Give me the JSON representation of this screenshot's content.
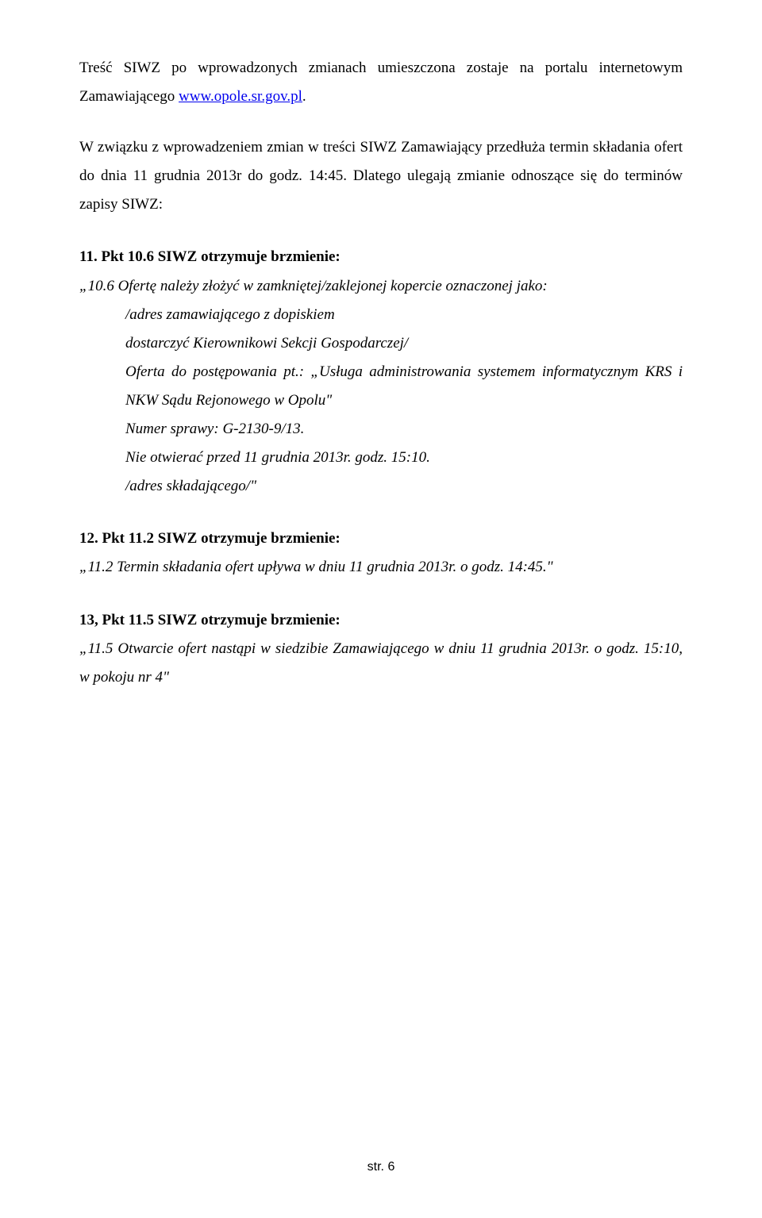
{
  "typography": {
    "body_font": "Times New Roman",
    "body_fontsize_pt": 14,
    "heading_fontsize_pt": 14,
    "line_height": 1.9,
    "text_color": "#000000",
    "link_color": "#0000ee",
    "background_color": "#ffffff"
  },
  "intro": {
    "line1_prefix": "Treść SIWZ po wprowadzonych zmianach umieszczona zostaje na portalu internetowym Zamawiającego ",
    "link_text": "www.opole.sr.gov.pl",
    "line1_suffix": "."
  },
  "para2": "W związku z wprowadzeniem zmian w treści SIWZ Zamawiający przedłuża termin składania ofert do dnia 11 grudnia 2013r do godz. 14:45. Dlatego ulegają zmianie odnoszące się do terminów zapisy SIWZ:",
  "section11": {
    "heading": "11. Pkt 10.6 SIWZ otrzymuje brzmienie:",
    "line_open": "„10.6 Ofertę należy złożyć w zamkniętej/zaklejonej kopercie oznaczonej jako:",
    "ind1": "/adres zamawiającego z dopiskiem",
    "ind2": "dostarczyć Kierownikowi Sekcji Gospodarczej/",
    "ind3": "Oferta do postępowania pt.: „Usługa administrowania systemem informatycznym KRS i NKW Sądu Rejonowego w Opolu\"",
    "ind4": "Numer sprawy: G-2130-9/13.",
    "ind5": "Nie otwierać przed 11 grudnia 2013r. godz. 15:10.",
    "ind6": "/adres składającego/\""
  },
  "section12": {
    "heading": "12. Pkt 11.2 SIWZ otrzymuje brzmienie:",
    "body": "„11.2 Termin składania ofert upływa w dniu 11 grudnia 2013r. o godz. 14:45.\""
  },
  "section13": {
    "heading": "13, Pkt 11.5 SIWZ otrzymuje brzmienie:",
    "body": "„11.5 Otwarcie ofert nastąpi w siedzibie Zamawiającego w dniu 11 grudnia 2013r. o godz. 15:10, w pokoju nr 4\""
  },
  "footer": "str. 6"
}
